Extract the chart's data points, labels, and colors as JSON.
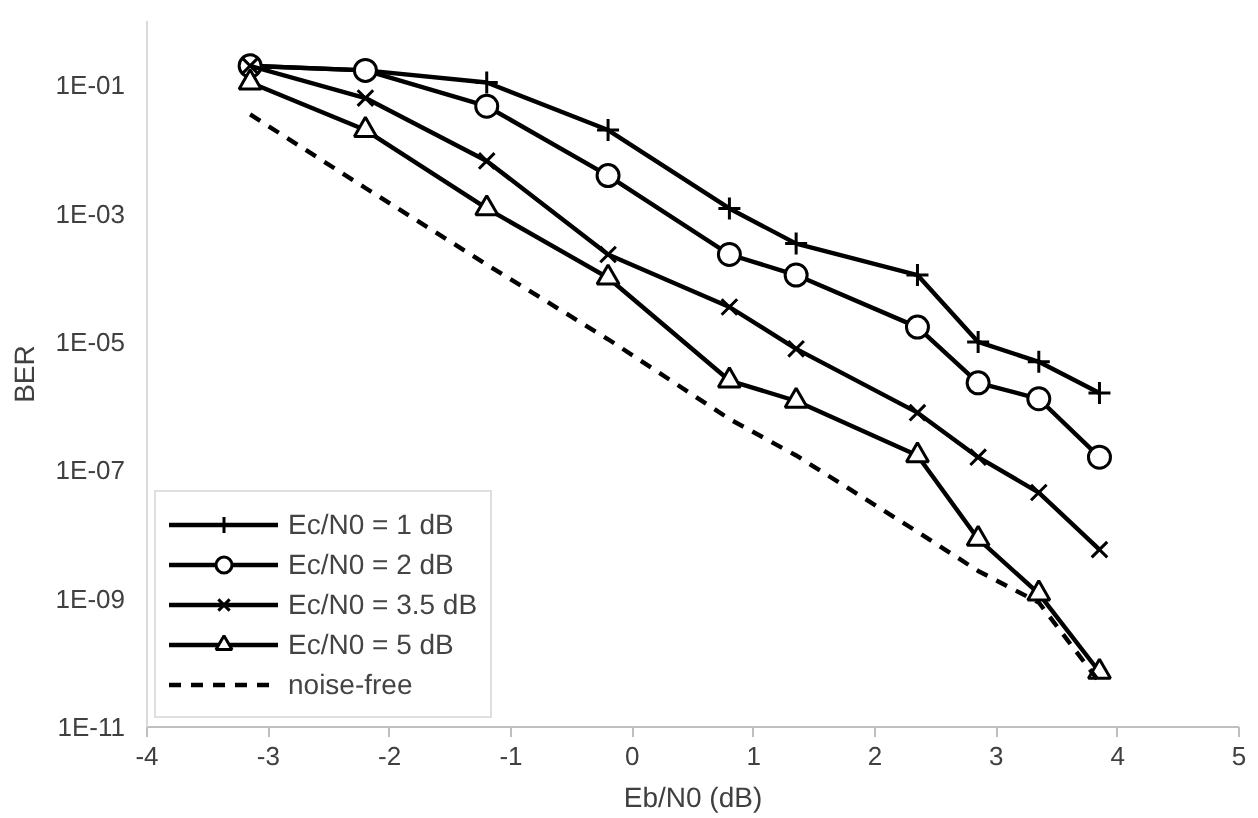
{
  "chart_data": {
    "type": "line",
    "xlabel": "Eb/N0 (dB)",
    "ylabel": "BER",
    "log": "y",
    "grid": false,
    "legend": "bottom left",
    "xlim": [
      -4,
      5
    ],
    "xticks": [
      -4,
      -3,
      -2,
      -1,
      0,
      1,
      2,
      3,
      4,
      5
    ],
    "ylim": [
      1e-11,
      1
    ],
    "yticks": [
      {
        "value": 0.1,
        "label": "1E-01"
      },
      {
        "value": 0.001,
        "label": "1E-03"
      },
      {
        "value": 1e-05,
        "label": "1E-05"
      },
      {
        "value": 1e-07,
        "label": "1E-07"
      },
      {
        "value": 1e-09,
        "label": "1E-09"
      },
      {
        "value": 1e-11,
        "label": "1E-11"
      }
    ],
    "x": [
      -3.15,
      -2.2,
      -1.2,
      -0.2,
      0.8,
      1.35,
      2.35,
      2.85,
      3.35,
      3.85
    ],
    "series": [
      {
        "name": "Ec/N0 = 1 dB",
        "color": "#000000",
        "marker": "cross",
        "line_style": "solid",
        "values": [
          0.2,
          0.17,
          0.11,
          0.02,
          0.0012,
          0.00034,
          0.00011,
          1e-05,
          4.9e-06,
          1.6e-06
        ]
      },
      {
        "name": "Ec/N0 = 2 dB",
        "color": "#000000",
        "marker": "circle",
        "line_style": "solid",
        "values": [
          0.2,
          0.17,
          0.047,
          0.0039,
          0.00023,
          0.00011,
          1.7e-05,
          2.3e-06,
          1.3e-06,
          1.6e-07
        ]
      },
      {
        "name": "Ec/N0 = 3.5 dB",
        "color": "#000000",
        "marker": "x",
        "line_style": "solid",
        "values": [
          0.2,
          0.063,
          0.0066,
          0.00023,
          3.5e-05,
          7.8e-06,
          7.9e-07,
          1.6e-07,
          4.5e-08,
          5.8e-09
        ]
      },
      {
        "name": "Ec/N0 = 5 dB",
        "color": "#000000",
        "marker": "triangle",
        "line_style": "solid",
        "values": [
          0.11,
          0.02,
          0.0012,
          0.0001,
          2.5e-06,
          1.2e-06,
          1.7e-07,
          8.5e-09,
          1.2e-09,
          7.2e-11
        ]
      },
      {
        "name": "noise-free",
        "color": "#000000",
        "marker": "none",
        "line_style": "dashed",
        "values": [
          0.035,
          0.0025,
          0.00016,
          1.1e-05,
          6.3e-07,
          1.7e-07,
          1.1e-08,
          2.7e-09,
          8.7e-10,
          5e-11
        ]
      }
    ]
  }
}
